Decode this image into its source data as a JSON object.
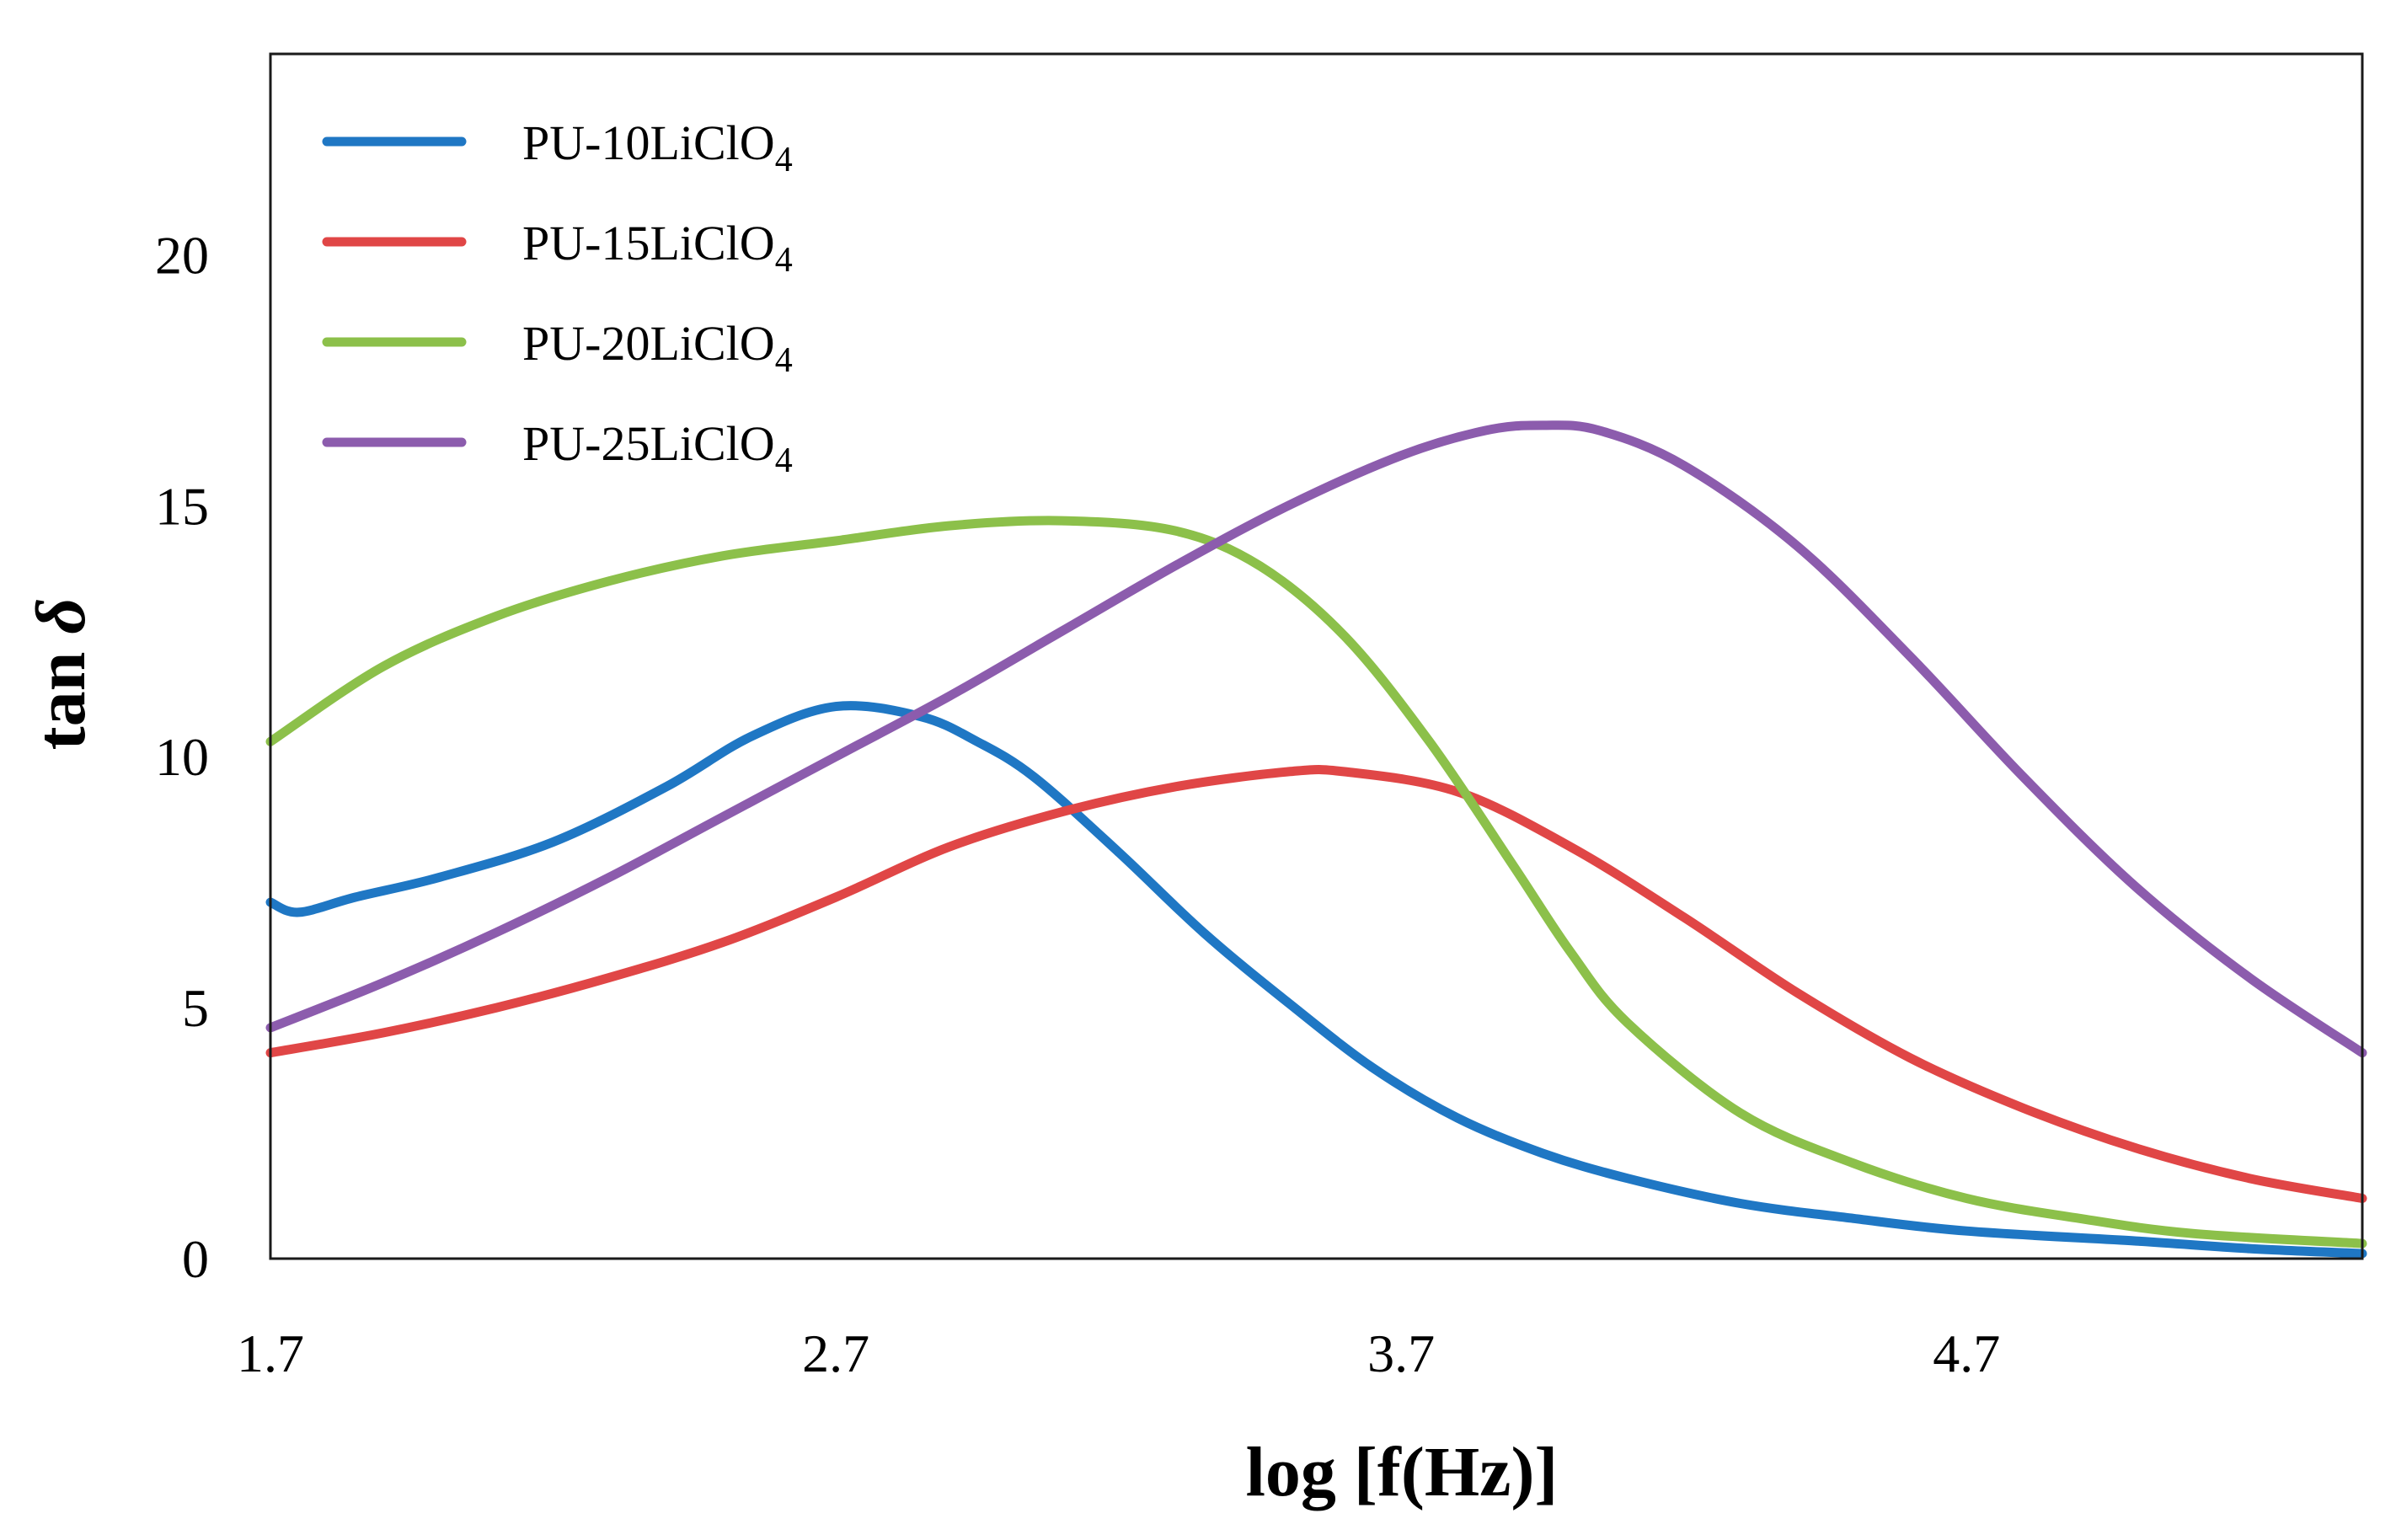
{
  "chart_data": {
    "type": "line",
    "title": "",
    "xlabel": "log [f(Hz)]",
    "ylabel": "tan δ",
    "ylabel_prefix": "tan ",
    "ylabel_symbol": "δ",
    "xlim": [
      1.7,
      5.4
    ],
    "ylim": [
      0,
      24
    ],
    "xticks": [
      1.7,
      2.7,
      3.7,
      4.7
    ],
    "xtick_labels": [
      "1.7",
      "2.7",
      "3.7",
      "4.7"
    ],
    "yticks": [
      0,
      5,
      10,
      15,
      20
    ],
    "ytick_labels": [
      "0",
      "5",
      "10",
      "15",
      "20"
    ],
    "grid": false,
    "legend_position": "top-left",
    "series": [
      {
        "name": "PU-10LiClO4",
        "label_main": "PU-10LiClO",
        "label_sub": "4",
        "color": "#1f77c4",
        "x": [
          1.7,
          1.75,
          1.85,
          2.0,
          2.2,
          2.4,
          2.55,
          2.7,
          2.85,
          2.95,
          3.05,
          3.2,
          3.35,
          3.5,
          3.65,
          3.8,
          3.95,
          4.1,
          4.3,
          4.5,
          4.7,
          5.0,
          5.2,
          5.4
        ],
        "y": [
          7.1,
          6.9,
          7.2,
          7.6,
          8.3,
          9.4,
          10.4,
          11.0,
          10.8,
          10.3,
          9.6,
          8.1,
          6.5,
          5.1,
          3.8,
          2.8,
          2.1,
          1.6,
          1.1,
          0.8,
          0.55,
          0.35,
          0.2,
          0.1
        ]
      },
      {
        "name": "PU-15LiClO4",
        "label_main": "PU-15LiClO",
        "label_sub": "4",
        "color": "#e04646",
        "x": [
          1.7,
          1.9,
          2.1,
          2.3,
          2.5,
          2.7,
          2.9,
          3.1,
          3.3,
          3.5,
          3.6,
          3.8,
          4.0,
          4.2,
          4.4,
          4.6,
          4.8,
          5.0,
          5.2,
          5.4
        ],
        "y": [
          4.1,
          4.5,
          5.0,
          5.6,
          6.3,
          7.2,
          8.2,
          8.9,
          9.4,
          9.7,
          9.7,
          9.3,
          8.2,
          6.8,
          5.3,
          4.0,
          3.0,
          2.2,
          1.6,
          1.2
        ]
      },
      {
        "name": "PU-20LiClO4",
        "label_main": "PU-20LiClO",
        "label_sub": "4",
        "color": "#8cc04a",
        "x": [
          1.7,
          1.9,
          2.1,
          2.3,
          2.5,
          2.7,
          2.9,
          3.1,
          3.3,
          3.45,
          3.6,
          3.75,
          3.9,
          4.0,
          4.1,
          4.3,
          4.5,
          4.7,
          4.9,
          5.1,
          5.4
        ],
        "y": [
          10.3,
          11.8,
          12.8,
          13.5,
          14.0,
          14.3,
          14.6,
          14.7,
          14.5,
          13.8,
          12.4,
          10.3,
          7.8,
          6.1,
          4.7,
          2.9,
          1.9,
          1.2,
          0.8,
          0.5,
          0.3
        ]
      },
      {
        "name": "PU-25LiClO4",
        "label_main": "PU-25LiClO",
        "label_sub": "4",
        "color": "#8c5cad",
        "x": [
          1.7,
          1.9,
          2.1,
          2.3,
          2.5,
          2.7,
          2.9,
          3.1,
          3.3,
          3.5,
          3.7,
          3.85,
          3.95,
          4.05,
          4.2,
          4.4,
          4.6,
          4.8,
          5.0,
          5.2,
          5.4
        ],
        "y": [
          4.6,
          5.5,
          6.5,
          7.6,
          8.8,
          10.0,
          11.2,
          12.5,
          13.8,
          15.0,
          16.0,
          16.5,
          16.6,
          16.5,
          15.8,
          14.2,
          12.0,
          9.6,
          7.4,
          5.6,
          4.1
        ]
      }
    ]
  }
}
